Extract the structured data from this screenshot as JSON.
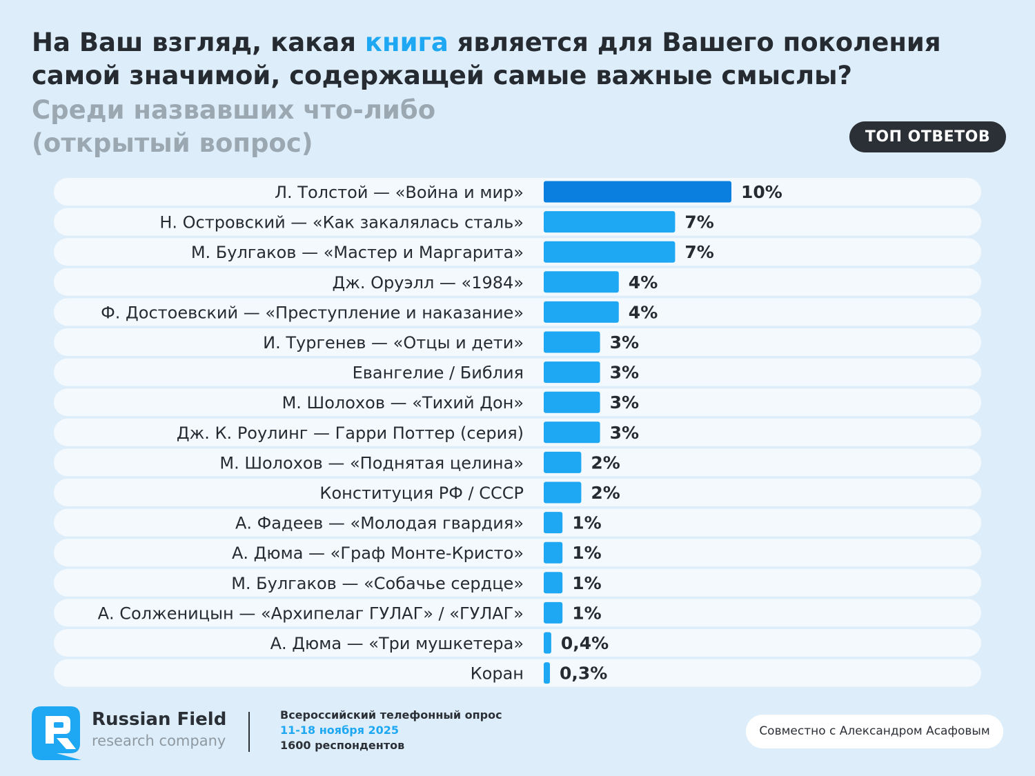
{
  "header": {
    "title_before": "На Ваш взгляд, какая ",
    "title_highlight": "книга",
    "title_after": " является для Вашего поколения самой значимой, содержащей самые важные смыслы?",
    "subtitle_line1": "Среди назвавших что-либо",
    "subtitle_line2": "(открытый вопрос)",
    "badge": "ТОП ОТВЕТОВ"
  },
  "colors": {
    "top_bar": "#0b7fe0",
    "bar": "#1ea7f2",
    "row_bg": "#f4f9fd",
    "text": "#262b32",
    "accent": "#1ea7f2"
  },
  "chart_data": {
    "type": "bar",
    "orientation": "horizontal",
    "title": "На Ваш взгляд, какая книга является для Вашего поколения самой значимой, содержащей самые важные смыслы?",
    "xlabel": "",
    "ylabel": "",
    "xlim": [
      0,
      10
    ],
    "categories": [
      "Л. Толстой — «Война и мир»",
      "Н. Островский — «Как закалялась сталь»",
      "М. Булгаков — «Мастер и Маргарита»",
      "Дж. Оруэлл — «1984»",
      "Ф. Достоевский — «Преступление и наказание»",
      "И. Тургенев — «Отцы и дети»",
      "Евангелие / Библия",
      "М. Шолохов — «Тихий Дон»",
      "Дж. К. Роулинг — Гарри Поттер (серия)",
      "М. Шолохов — «Поднятая целина»",
      "Конституция РФ / СССР",
      "А. Фадеев — «Молодая гвардия»",
      "А. Дюма — «Граф Монте-Кристо»",
      "М. Булгаков — «Собачье сердце»",
      "А. Солженицын — «Архипелаг ГУЛАГ» / «ГУЛАГ»",
      "А. Дюма — «Три мушкетера»",
      "Коран"
    ],
    "values": [
      10,
      7,
      7,
      4,
      4,
      3,
      3,
      3,
      3,
      2,
      2,
      1,
      1,
      1,
      1,
      0.4,
      0.3
    ],
    "labels": [
      "10%",
      "7%",
      "7%",
      "4%",
      "4%",
      "3%",
      "3%",
      "3%",
      "3%",
      "2%",
      "2%",
      "1%",
      "1%",
      "1%",
      "1%",
      "0,4%",
      "0,3%"
    ]
  },
  "footer": {
    "brand_name": "Russian Field",
    "brand_sub": "research company",
    "survey_line1": "Всероссийский телефонный опрос",
    "survey_line2": "11-18 ноября 2025",
    "survey_line3": "1600 респондентов",
    "collab": "Совместно с Александром Асафовым"
  }
}
